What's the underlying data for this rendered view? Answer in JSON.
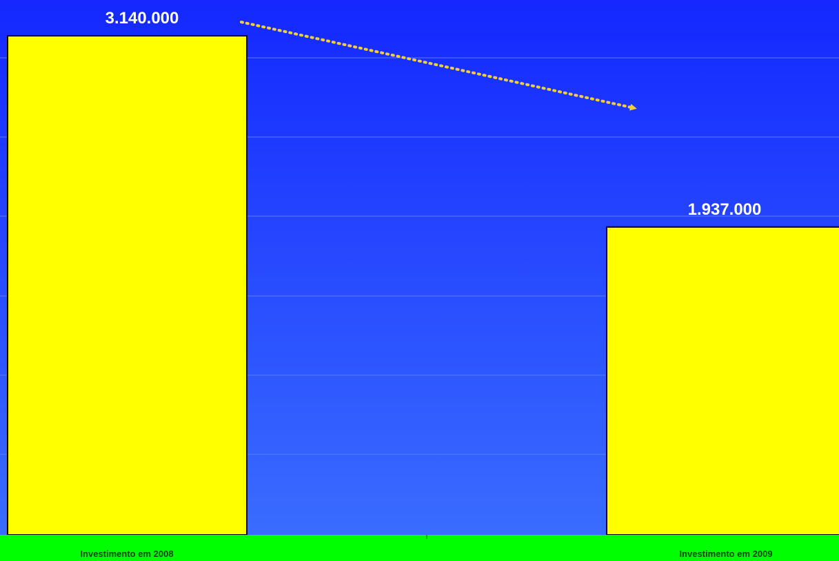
{
  "chart_data": {
    "type": "bar",
    "categories": [
      "Investimento em 2008",
      "Investimento em 2009"
    ],
    "values": [
      3140000,
      1937000
    ],
    "value_labels": [
      "3.140.000",
      "1.937.000"
    ],
    "title": "",
    "xlabel": "",
    "ylabel": "",
    "ylim": [
      0,
      3140000
    ],
    "grid": true,
    "legend": "none",
    "annotation": "dotted-arrow-decrease"
  },
  "colors": {
    "background_top": "#1428ff",
    "background_bottom": "#3a6cff",
    "gridline": "#5b7dff",
    "bar_fill": "#ffff00",
    "bar_stroke": "#000000",
    "floor": "#00ff00",
    "value_label": "#ffffff",
    "category_label": "#004400",
    "arrow": "#f2cf3a"
  }
}
